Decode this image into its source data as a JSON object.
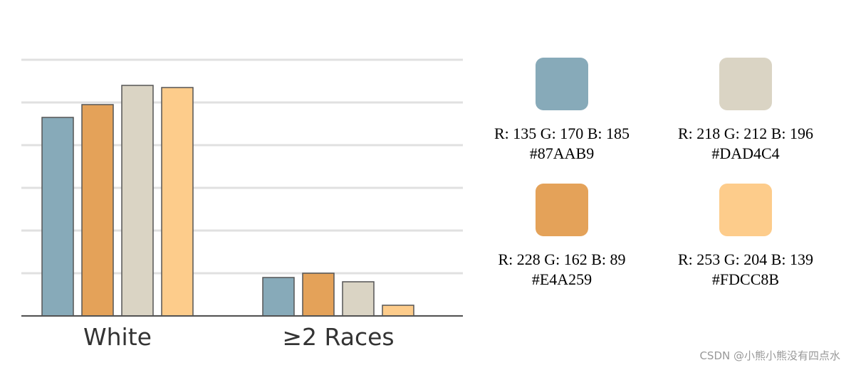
{
  "chart_data": {
    "type": "bar",
    "categories": [
      "White",
      "≥2 Races"
    ],
    "series": [
      {
        "color": "#87AAB9",
        "values": [
          4.65,
          0.9
        ]
      },
      {
        "color": "#E4A259",
        "values": [
          4.95,
          1.0
        ]
      },
      {
        "color": "#DAD4C4",
        "values": [
          5.4,
          0.8
        ]
      },
      {
        "color": "#FDCC8B",
        "values": [
          5.35,
          0.25
        ]
      }
    ],
    "ylim": [
      0,
      6
    ],
    "yticks": [
      0,
      1,
      2,
      3,
      4,
      5,
      6
    ],
    "grid": true
  },
  "palette": [
    {
      "rgb": "R: 135 G: 170 B: 185",
      "hex": "#87AAB9"
    },
    {
      "rgb": "R: 218 G: 212 B: 196",
      "hex": "#DAD4C4"
    },
    {
      "rgb": "R: 228 G: 162 B: 89",
      "hex": "#E4A259"
    },
    {
      "rgb": "R: 253 G: 204 B: 139",
      "hex": "#FDCC8B"
    }
  ],
  "watermark": "CSDN @小熊小熊没有四点水"
}
